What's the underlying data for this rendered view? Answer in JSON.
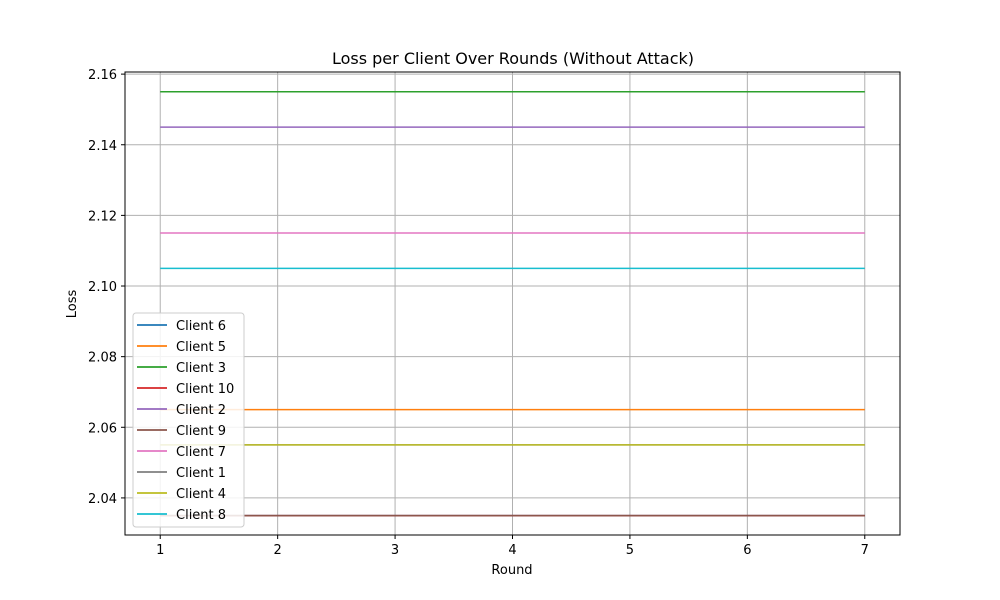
{
  "chart_data": {
    "type": "line",
    "title": "Loss per Client Over Rounds (Without Attack)",
    "xlabel": "Round",
    "ylabel": "Loss",
    "xlim": [
      0.7,
      7.3
    ],
    "ylim": [
      2.0295,
      2.1606
    ],
    "xticks": [
      1,
      2,
      3,
      4,
      5,
      6,
      7
    ],
    "yticks": [
      2.04,
      2.06,
      2.08,
      2.1,
      2.12,
      2.14,
      2.16
    ],
    "ytick_labels": [
      "2.04",
      "2.06",
      "2.08",
      "2.10",
      "2.12",
      "2.14",
      "2.16"
    ],
    "grid": true,
    "legend_position": "lower-left",
    "x": [
      1,
      2,
      3,
      4,
      5,
      6,
      7
    ],
    "series": [
      {
        "name": "Client 6",
        "color": "#1f77b4",
        "values": [
          2.035,
          2.035,
          2.035,
          2.035,
          2.035,
          2.035,
          2.035
        ]
      },
      {
        "name": "Client 5",
        "color": "#ff7f0e",
        "values": [
          2.065,
          2.065,
          2.065,
          2.065,
          2.065,
          2.065,
          2.065
        ]
      },
      {
        "name": "Client 3",
        "color": "#2ca02c",
        "values": [
          2.155,
          2.155,
          2.155,
          2.155,
          2.155,
          2.155,
          2.155
        ]
      },
      {
        "name": "Client 10",
        "color": "#d62728",
        "values": [
          2.035,
          2.035,
          2.035,
          2.035,
          2.035,
          2.035,
          2.035
        ]
      },
      {
        "name": "Client 2",
        "color": "#9467bd",
        "values": [
          2.145,
          2.145,
          2.145,
          2.145,
          2.145,
          2.145,
          2.145
        ]
      },
      {
        "name": "Client 9",
        "color": "#8c564b",
        "values": [
          2.035,
          2.035,
          2.035,
          2.035,
          2.035,
          2.035,
          2.035
        ]
      },
      {
        "name": "Client 7",
        "color": "#e377c2",
        "values": [
          2.115,
          2.115,
          2.115,
          2.115,
          2.115,
          2.115,
          2.115
        ]
      },
      {
        "name": "Client 1",
        "color": "#7f7f7f",
        "values": [
          2.055,
          2.055,
          2.055,
          2.055,
          2.055,
          2.055,
          2.055
        ]
      },
      {
        "name": "Client 4",
        "color": "#bcbd22",
        "values": [
          2.055,
          2.055,
          2.055,
          2.055,
          2.055,
          2.055,
          2.055
        ]
      },
      {
        "name": "Client 8",
        "color": "#17becf",
        "values": [
          2.105,
          2.105,
          2.105,
          2.105,
          2.105,
          2.105,
          2.105
        ]
      }
    ]
  }
}
